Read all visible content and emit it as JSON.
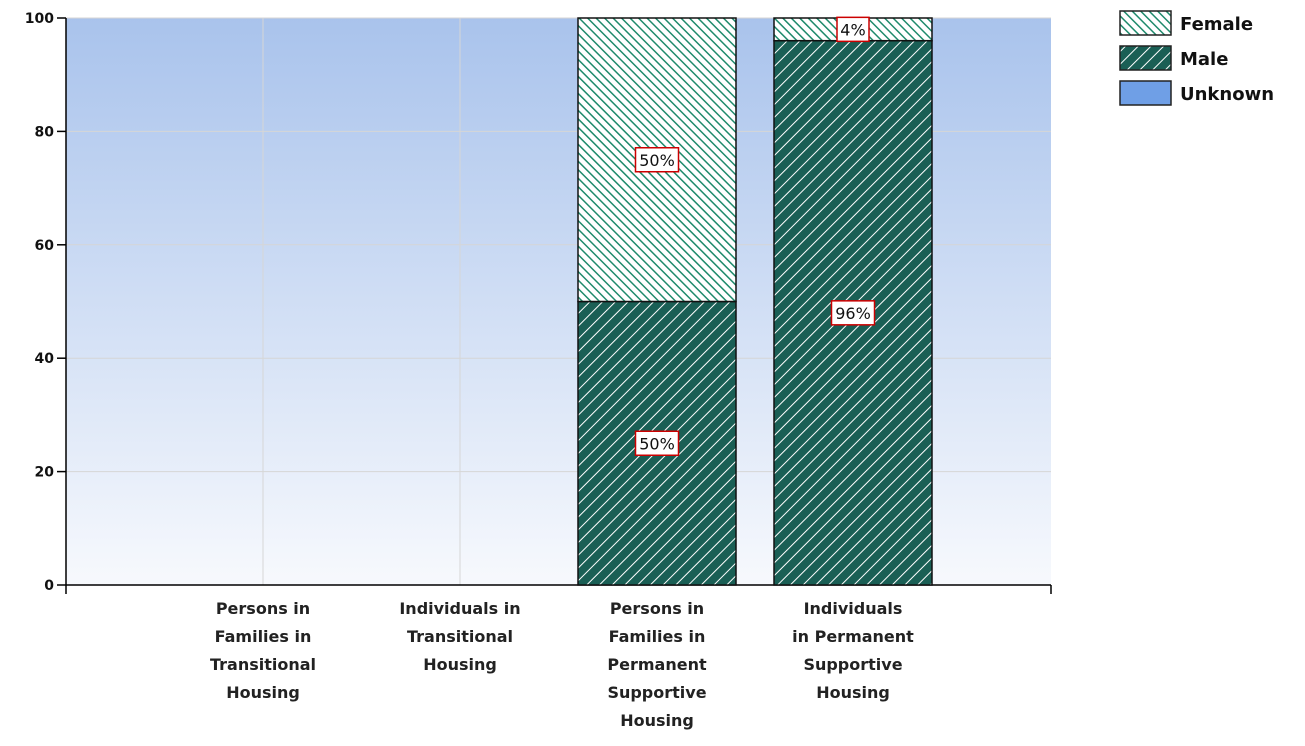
{
  "chart_data": {
    "type": "bar",
    "stacked": true,
    "categories": [
      "Persons in Families in Transitional Housing",
      "Individuals in Transitional Housing",
      "Persons in Families in Permanent Supportive Housing",
      "Individuals in Permanent Supportive Housing"
    ],
    "category_label_lines": [
      [
        "Persons in",
        "Families in",
        "Transitional",
        "Housing"
      ],
      [
        "Individuals in",
        "Transitional",
        "Housing"
      ],
      [
        "Persons in",
        "Families in",
        "Permanent",
        "Supportive",
        "Housing"
      ],
      [
        "Individuals",
        "in Permanent",
        "Supportive",
        "Housing"
      ]
    ],
    "series": [
      {
        "name": "Male",
        "values": [
          0,
          0,
          50,
          96
        ],
        "labels": [
          "",
          "",
          "50%",
          "96%"
        ],
        "color": "#1a5f55",
        "pattern": "hatch-wide"
      },
      {
        "name": "Female",
        "values": [
          0,
          0,
          50,
          4
        ],
        "labels": [
          "",
          "",
          "50%",
          "4%"
        ],
        "color": "#1f8a6c",
        "pattern": "hatch-dense"
      },
      {
        "name": "Unknown",
        "values": [
          0,
          0,
          0,
          0
        ],
        "labels": [
          "",
          "",
          "",
          ""
        ],
        "color": "#6f9fe6",
        "pattern": "solid"
      }
    ],
    "legend": {
      "placement": "top-right",
      "items": [
        {
          "name": "Female",
          "pattern": "hatch-dense"
        },
        {
          "name": "Male",
          "pattern": "hatch-wide"
        },
        {
          "name": "Unknown",
          "pattern": "solid"
        }
      ]
    },
    "y_ticks": [
      0,
      20,
      40,
      60,
      80,
      100
    ],
    "ylim": [
      0,
      100
    ],
    "grid": true,
    "colors": {
      "plot_top": "#a9c3ec",
      "plot_bottom": "#f5f8fd",
      "grid": "#d6d6d6",
      "label_border": "#cc0000",
      "bar_outline": "#111111"
    }
  }
}
